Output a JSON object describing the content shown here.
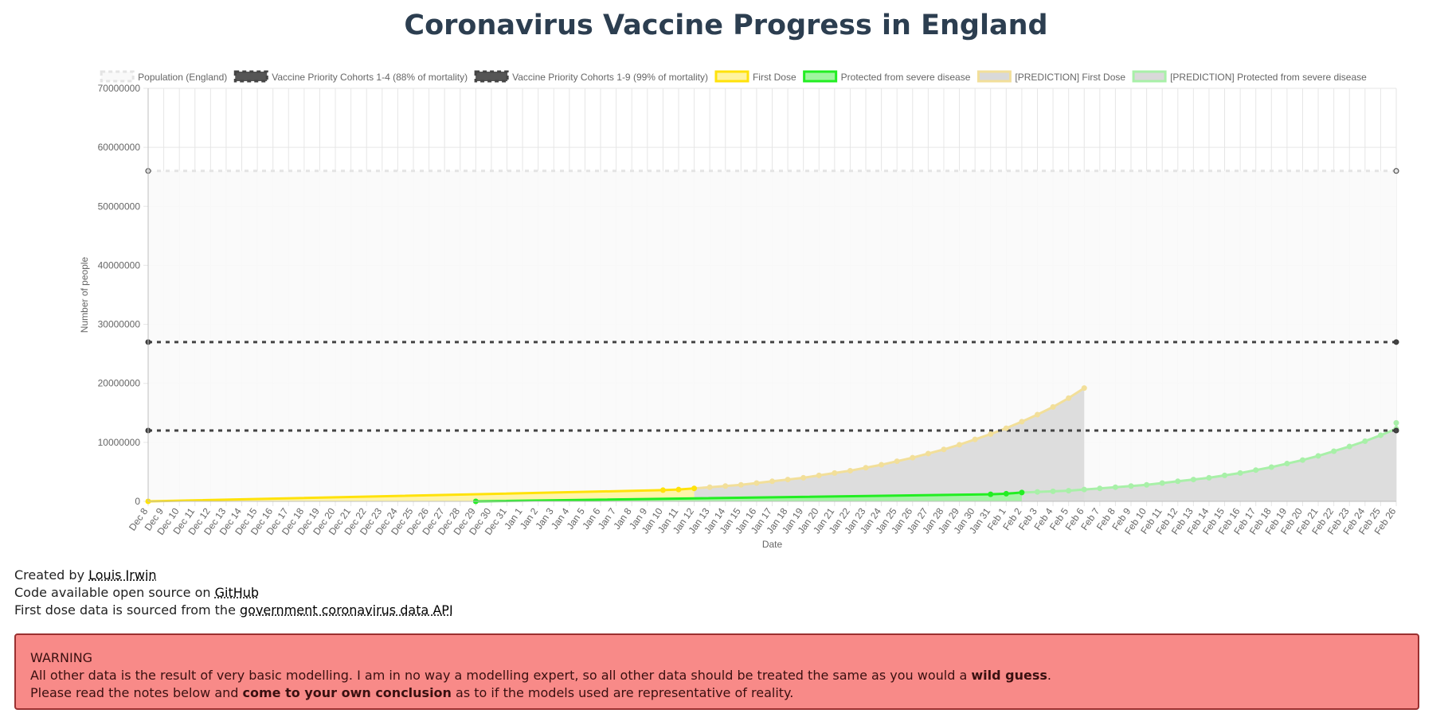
{
  "page": {
    "title": "Coronavirus Vaccine Progress in England"
  },
  "credits": {
    "created_prefix": "Created by ",
    "author": "Louis Irwin",
    "code_prefix": "Code available open source on ",
    "code_link": "GitHub",
    "source_prefix": "First dose data is sourced from the ",
    "source_link": "government coronavirus data API"
  },
  "warning": {
    "heading": "WARNING",
    "line1_a": "All other data is the result of very basic modelling. I am in no way a modelling expert, so all other data should be treated the same as you would a ",
    "line1_b": "wild guess",
    "line1_c": ".",
    "line2_a": "Please read the notes below and ",
    "line2_b": "come to your own conclusion",
    "line2_c": " as to if the models used are representative of reality."
  },
  "chart_data": {
    "type": "line",
    "xlabel": "Date",
    "ylabel": "Number of people",
    "ylim": [
      0,
      70000000
    ],
    "yticks": [
      "0",
      "10000000",
      "20000000",
      "30000000",
      "40000000",
      "50000000",
      "60000000",
      "70000000"
    ],
    "grid": true,
    "legend_position": "top",
    "categories": [
      "Dec 8",
      "Dec 9",
      "Dec 10",
      "Dec 11",
      "Dec 12",
      "Dec 13",
      "Dec 14",
      "Dec 15",
      "Dec 16",
      "Dec 17",
      "Dec 18",
      "Dec 19",
      "Dec 20",
      "Dec 21",
      "Dec 22",
      "Dec 23",
      "Dec 24",
      "Dec 25",
      "Dec 26",
      "Dec 27",
      "Dec 28",
      "Dec 29",
      "Dec 30",
      "Dec 31",
      "Jan 1",
      "Jan 2",
      "Jan 3",
      "Jan 4",
      "Jan 5",
      "Jan 6",
      "Jan 7",
      "Jan 8",
      "Jan 9",
      "Jan 10",
      "Jan 11",
      "Jan 12",
      "Jan 13",
      "Jan 14",
      "Jan 15",
      "Jan 16",
      "Jan 17",
      "Jan 18",
      "Jan 19",
      "Jan 20",
      "Jan 21",
      "Jan 22",
      "Jan 23",
      "Jan 24",
      "Jan 25",
      "Jan 26",
      "Jan 27",
      "Jan 28",
      "Jan 29",
      "Jan 30",
      "Jan 31",
      "Feb 1",
      "Feb 2",
      "Feb 3",
      "Feb 4",
      "Feb 5",
      "Feb 6",
      "Feb 7",
      "Feb 8",
      "Feb 9",
      "Feb 10",
      "Feb 11",
      "Feb 12",
      "Feb 13",
      "Feb 14",
      "Feb 15",
      "Feb 16",
      "Feb 17",
      "Feb 18",
      "Feb 19",
      "Feb 20",
      "Feb 21",
      "Feb 22",
      "Feb 23",
      "Feb 24",
      "Feb 25",
      "Feb 26"
    ],
    "series": [
      {
        "name": "Population (England)",
        "color": "#e4e4e4",
        "dashed": true,
        "fill": "#f9f9f9",
        "points": [
          {
            "x": "Dec 8",
            "y": 56000000
          },
          {
            "x": "Feb 26",
            "y": 56000000
          }
        ]
      },
      {
        "name": "Vaccine Priority Cohorts 1-4 (88% of mortality)",
        "color": "#444444",
        "dashed": true,
        "points": [
          {
            "x": "Dec 8",
            "y": 12000000
          },
          {
            "x": "Feb 26",
            "y": 12000000
          }
        ]
      },
      {
        "name": "Vaccine Priority Cohorts 1-9 (99% of mortality)",
        "color": "#444444",
        "dashed": true,
        "points": [
          {
            "x": "Dec 8",
            "y": 27000000
          },
          {
            "x": "Feb 26",
            "y": 27000000
          }
        ]
      },
      {
        "name": "First Dose",
        "color": "#ffe20a",
        "fill": "#fff3a0",
        "points": [
          {
            "x": "Dec 8",
            "y": 0
          },
          {
            "x": "Jan 10",
            "y": 1900000
          },
          {
            "x": "Jan 11",
            "y": 2000000
          },
          {
            "x": "Jan 12",
            "y": 2200000
          }
        ]
      },
      {
        "name": "Protected from severe disease",
        "color": "#22ee22",
        "fill": "#9ff59f",
        "points": [
          {
            "x": "Dec 29",
            "y": 0
          },
          {
            "x": "Jan 31",
            "y": 1200000
          },
          {
            "x": "Feb 1",
            "y": 1300000
          },
          {
            "x": "Feb 2",
            "y": 1500000
          }
        ]
      },
      {
        "name": "[PREDICTION] First Dose",
        "color": "#f2df9a",
        "fill": "#d9d9d9",
        "points": [
          {
            "x": "Jan 12",
            "y": 2200000
          },
          {
            "x": "Jan 13",
            "y": 2400000
          },
          {
            "x": "Jan 14",
            "y": 2600000
          },
          {
            "x": "Jan 15",
            "y": 2800000
          },
          {
            "x": "Jan 16",
            "y": 3100000
          },
          {
            "x": "Jan 17",
            "y": 3400000
          },
          {
            "x": "Jan 18",
            "y": 3700000
          },
          {
            "x": "Jan 19",
            "y": 4000000
          },
          {
            "x": "Jan 20",
            "y": 4400000
          },
          {
            "x": "Jan 21",
            "y": 4800000
          },
          {
            "x": "Jan 22",
            "y": 5200000
          },
          {
            "x": "Jan 23",
            "y": 5700000
          },
          {
            "x": "Jan 24",
            "y": 6200000
          },
          {
            "x": "Jan 25",
            "y": 6800000
          },
          {
            "x": "Jan 26",
            "y": 7400000
          },
          {
            "x": "Jan 27",
            "y": 8100000
          },
          {
            "x": "Jan 28",
            "y": 8800000
          },
          {
            "x": "Jan 29",
            "y": 9600000
          },
          {
            "x": "Jan 30",
            "y": 10500000
          },
          {
            "x": "Jan 31",
            "y": 11400000
          },
          {
            "x": "Feb 1",
            "y": 12400000
          },
          {
            "x": "Feb 2",
            "y": 13500000
          },
          {
            "x": "Feb 3",
            "y": 14700000
          },
          {
            "x": "Feb 4",
            "y": 16000000
          },
          {
            "x": "Feb 5",
            "y": 17500000
          },
          {
            "x": "Feb 6",
            "y": 19200000
          }
        ]
      },
      {
        "name": "[PREDICTION] Protected from severe disease",
        "color": "#a8f0a8",
        "fill": "#d9d9d9",
        "points": [
          {
            "x": "Feb 2",
            "y": 1500000
          },
          {
            "x": "Feb 3",
            "y": 1600000
          },
          {
            "x": "Feb 4",
            "y": 1700000
          },
          {
            "x": "Feb 5",
            "y": 1800000
          },
          {
            "x": "Feb 6",
            "y": 2000000
          },
          {
            "x": "Feb 7",
            "y": 2200000
          },
          {
            "x": "Feb 8",
            "y": 2400000
          },
          {
            "x": "Feb 9",
            "y": 2600000
          },
          {
            "x": "Feb 10",
            "y": 2800000
          },
          {
            "x": "Feb 11",
            "y": 3100000
          },
          {
            "x": "Feb 12",
            "y": 3400000
          },
          {
            "x": "Feb 13",
            "y": 3700000
          },
          {
            "x": "Feb 14",
            "y": 4000000
          },
          {
            "x": "Feb 15",
            "y": 4400000
          },
          {
            "x": "Feb 16",
            "y": 4800000
          },
          {
            "x": "Feb 17",
            "y": 5300000
          },
          {
            "x": "Feb 18",
            "y": 5800000
          },
          {
            "x": "Feb 19",
            "y": 6400000
          },
          {
            "x": "Feb 20",
            "y": 7000000
          },
          {
            "x": "Feb 21",
            "y": 7700000
          },
          {
            "x": "Feb 22",
            "y": 8500000
          },
          {
            "x": "Feb 23",
            "y": 9300000
          },
          {
            "x": "Feb 24",
            "y": 10200000
          },
          {
            "x": "Feb 25",
            "y": 11200000
          },
          {
            "x": "Feb 26",
            "y": 12300000
          },
          {
            "x": "Feb 26",
            "y": 13300000
          }
        ]
      }
    ]
  }
}
